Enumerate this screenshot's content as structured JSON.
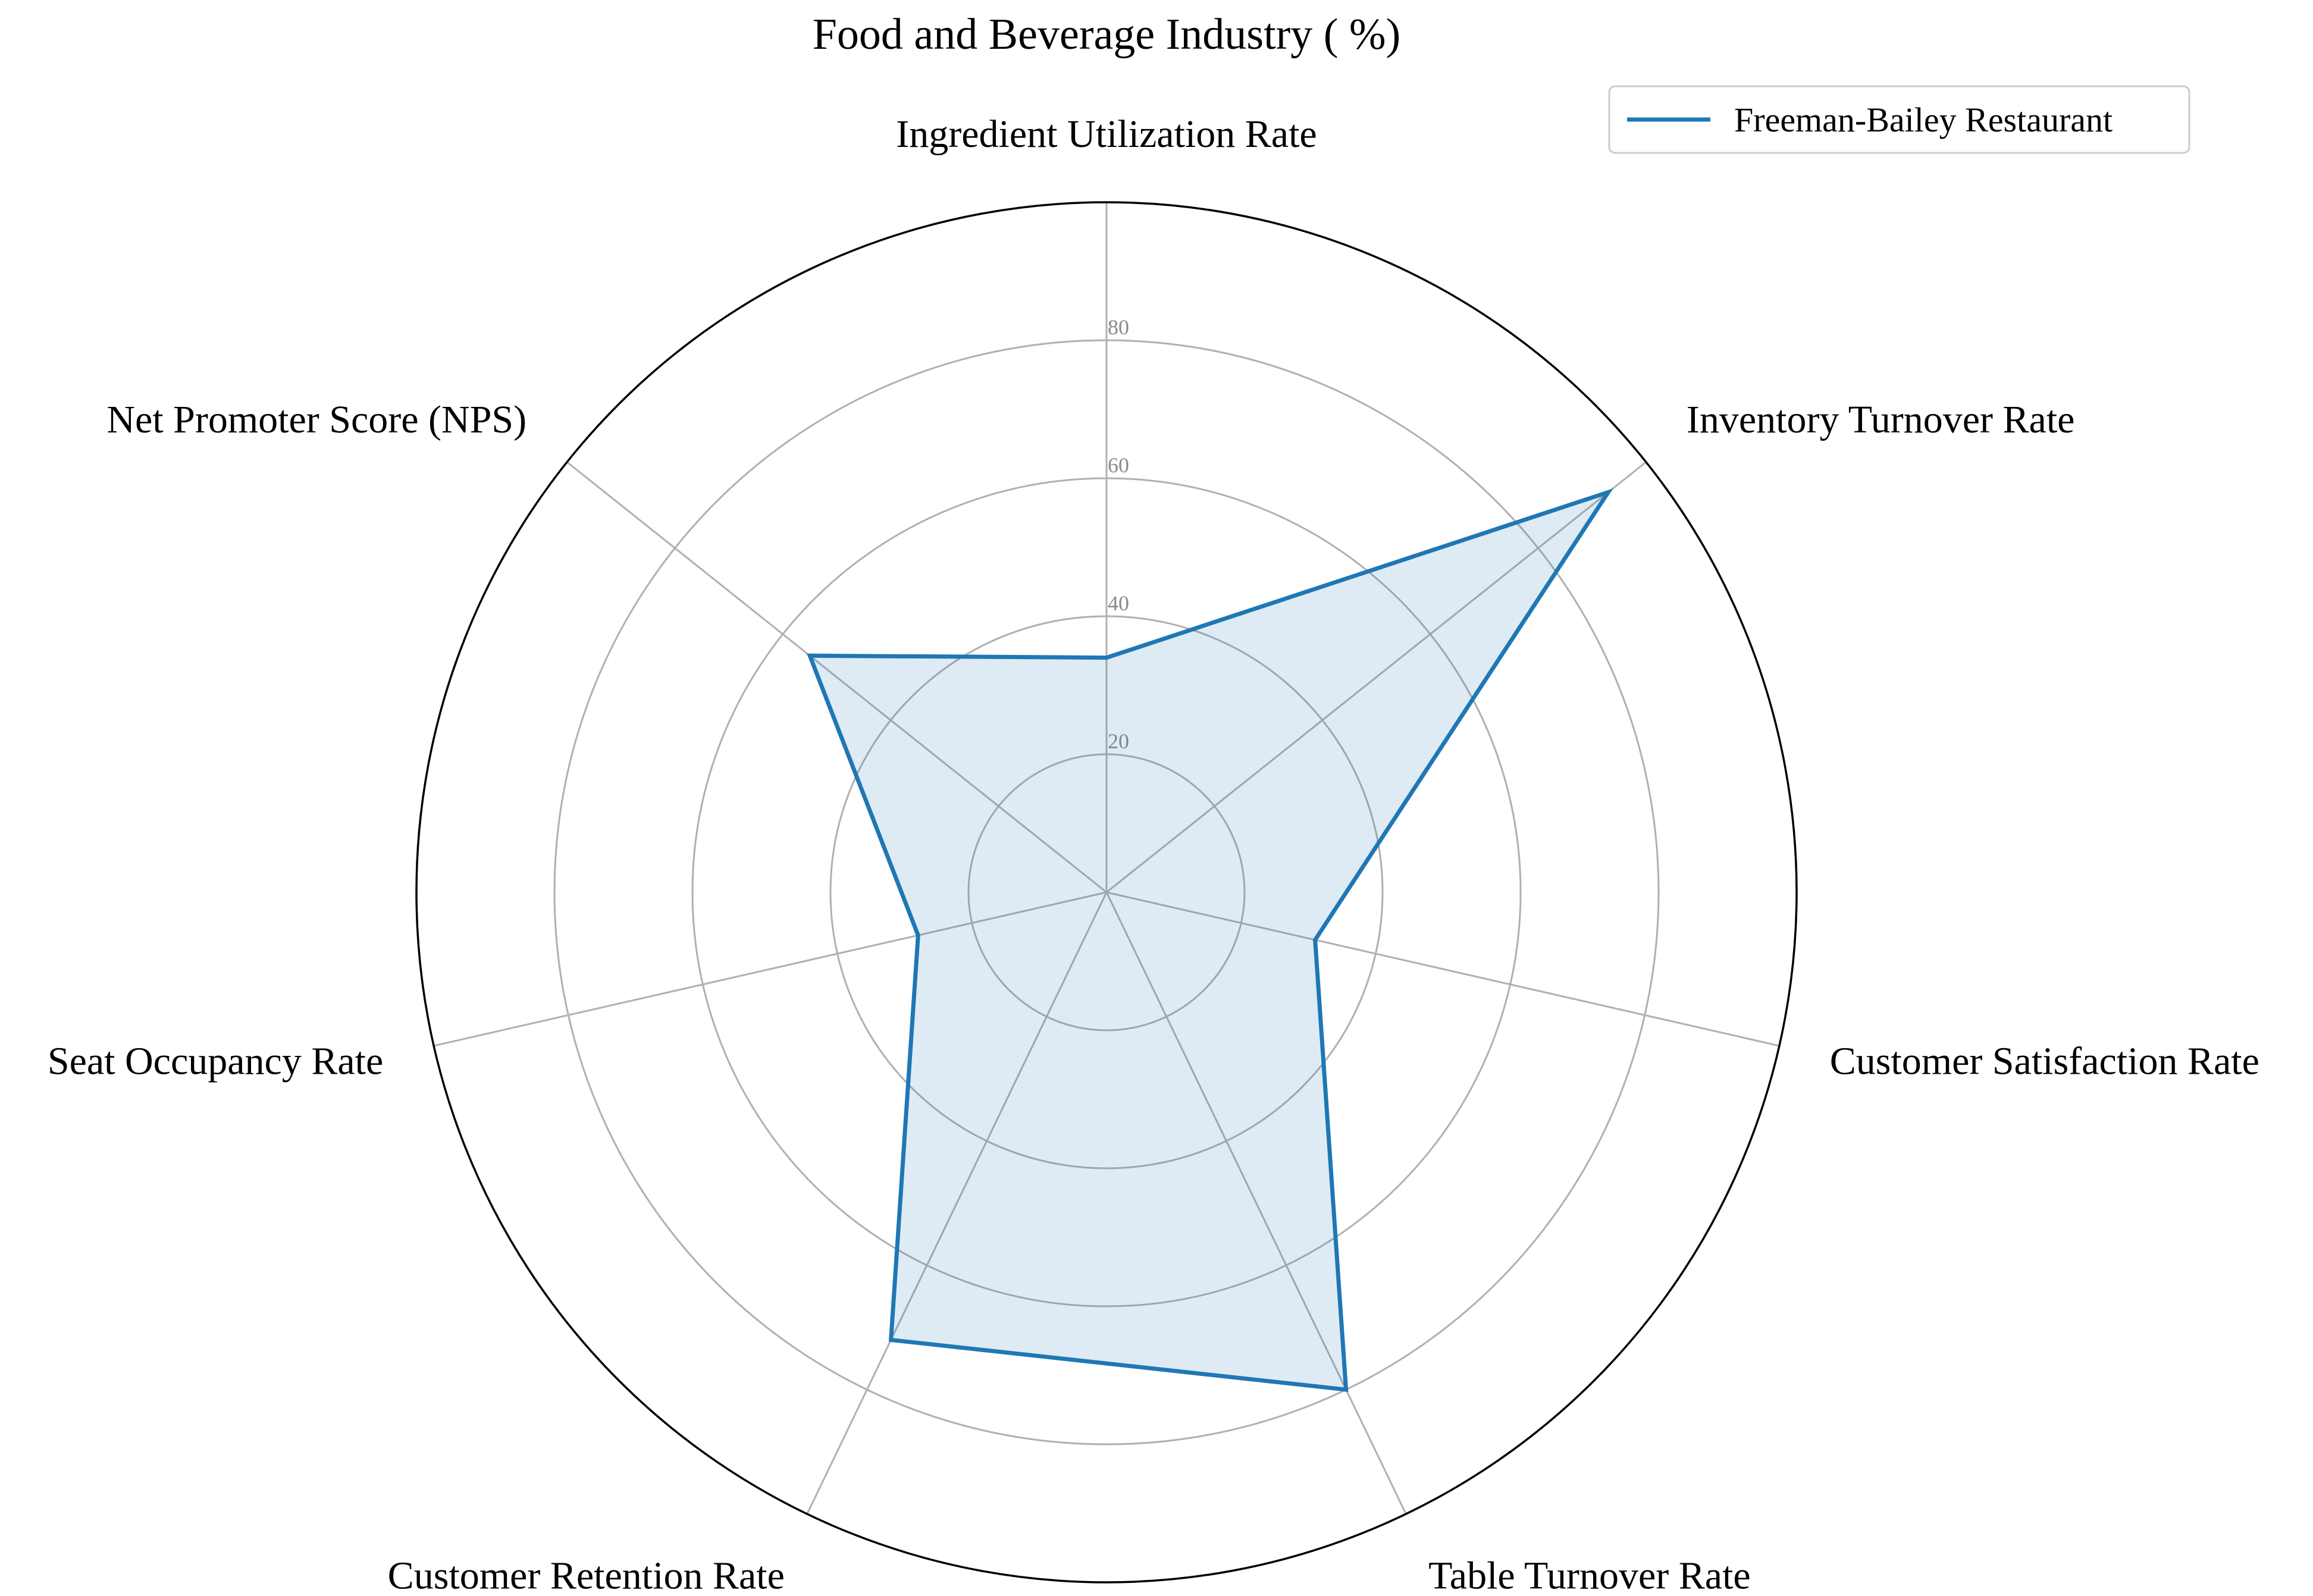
{
  "chart_data": {
    "type": "radar",
    "title": "Food and Beverage Industry ( %)",
    "categories": [
      "Ingredient Utilization Rate",
      "Inventory Turnover Rate",
      "Customer Satisfaction Rate",
      "Table Turnover Rate",
      "Customer Retention Rate",
      "Seat Occupancy Rate",
      "Net Promoter Score (NPS)"
    ],
    "series": [
      {
        "name": "Freeman-Bailey Restaurant",
        "values": [
          34,
          93,
          31,
          80,
          72,
          28,
          55
        ]
      }
    ],
    "rlim": [
      0,
      100
    ],
    "radial_ticks": [
      20,
      40,
      60,
      80
    ],
    "grid": true,
    "legend_position": "top-right",
    "colors": {
      "line": "#1f77b4",
      "fill": "#1f77b4",
      "grid": "#b0b0b0",
      "frame": "#000000",
      "tick_text": "#8a8a8a"
    }
  }
}
